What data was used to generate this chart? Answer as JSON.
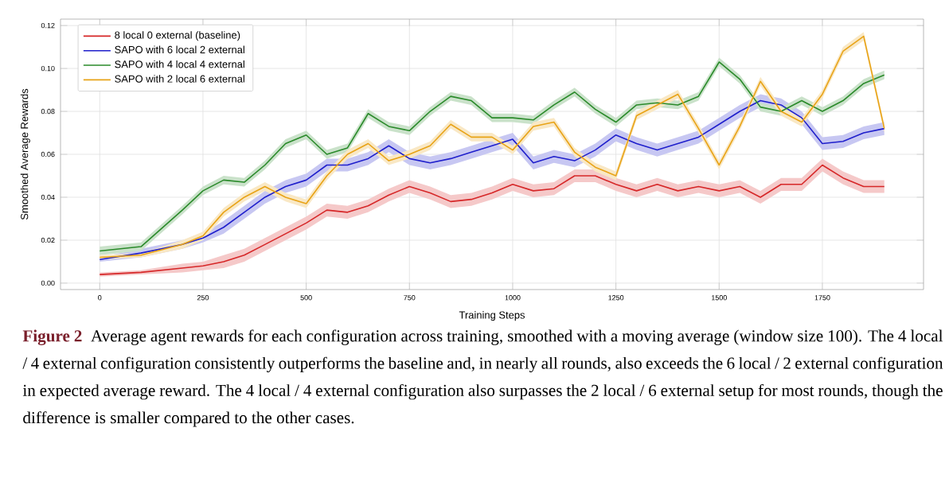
{
  "chart_data": {
    "type": "line",
    "xlabel": "Training Steps",
    "ylabel": "Smoothed Average Rewards",
    "xlim": [
      -95,
      1995
    ],
    "ylim": [
      -0.003,
      0.123
    ],
    "xticks": [
      0,
      250,
      500,
      750,
      1000,
      1250,
      1500,
      1750
    ],
    "yticks": [
      {
        "value": 0,
        "label": "0.00"
      },
      {
        "value": 0.02,
        "label": "0.02"
      },
      {
        "value": 0.04,
        "label": "0.04"
      },
      {
        "value": 0.06,
        "label": "0.06"
      },
      {
        "value": 0.08,
        "label": "0.08"
      },
      {
        "value": 0.1,
        "label": "0.10"
      },
      {
        "value": 0.12,
        "label": "0.12"
      }
    ],
    "grid": true,
    "legend": "top left",
    "marker": "none",
    "line_style": "solid",
    "x": [
      0,
      100,
      200,
      250,
      300,
      350,
      400,
      450,
      500,
      550,
      600,
      650,
      700,
      750,
      800,
      850,
      900,
      950,
      1000,
      1050,
      1100,
      1150,
      1200,
      1250,
      1300,
      1350,
      1400,
      1450,
      1500,
      1550,
      1600,
      1650,
      1700,
      1750,
      1800,
      1850,
      1900
    ],
    "series": [
      {
        "name": "8 local 0 external (baseline)",
        "color": "#d62728",
        "values": [
          0.004,
          0.005,
          0.007,
          0.008,
          0.01,
          0.013,
          0.018,
          0.023,
          0.028,
          0.034,
          0.033,
          0.036,
          0.041,
          0.045,
          0.042,
          0.038,
          0.039,
          0.042,
          0.046,
          0.043,
          0.044,
          0.05,
          0.05,
          0.046,
          0.043,
          0.046,
          0.043,
          0.045,
          0.043,
          0.045,
          0.04,
          0.046,
          0.046,
          0.055,
          0.049,
          0.045,
          0.045
        ],
        "lower": [
          0.003,
          0.004,
          0.005,
          0.006,
          0.007,
          0.01,
          0.015,
          0.02,
          0.025,
          0.031,
          0.03,
          0.033,
          0.038,
          0.042,
          0.039,
          0.035,
          0.036,
          0.039,
          0.043,
          0.04,
          0.041,
          0.047,
          0.047,
          0.043,
          0.04,
          0.043,
          0.04,
          0.042,
          0.04,
          0.042,
          0.037,
          0.043,
          0.043,
          0.052,
          0.046,
          0.042,
          0.042
        ],
        "upper": [
          0.005,
          0.006,
          0.009,
          0.01,
          0.013,
          0.016,
          0.021,
          0.026,
          0.031,
          0.037,
          0.036,
          0.039,
          0.044,
          0.048,
          0.045,
          0.041,
          0.042,
          0.045,
          0.049,
          0.046,
          0.047,
          0.053,
          0.053,
          0.049,
          0.046,
          0.049,
          0.046,
          0.048,
          0.046,
          0.048,
          0.043,
          0.049,
          0.049,
          0.058,
          0.052,
          0.048,
          0.048
        ]
      },
      {
        "name": "SAPO with 6 local 2 external",
        "color": "#1f1fcc",
        "values": [
          0.011,
          0.014,
          0.018,
          0.021,
          0.026,
          0.033,
          0.04,
          0.045,
          0.048,
          0.055,
          0.055,
          0.058,
          0.064,
          0.058,
          0.056,
          0.058,
          0.061,
          0.064,
          0.067,
          0.056,
          0.059,
          0.057,
          0.062,
          0.069,
          0.065,
          0.062,
          0.065,
          0.068,
          0.074,
          0.08,
          0.085,
          0.083,
          0.077,
          0.065,
          0.066,
          0.07,
          0.072
        ],
        "lower": [
          0.01,
          0.012,
          0.016,
          0.019,
          0.023,
          0.03,
          0.037,
          0.042,
          0.045,
          0.052,
          0.052,
          0.055,
          0.061,
          0.055,
          0.053,
          0.055,
          0.058,
          0.061,
          0.064,
          0.053,
          0.056,
          0.054,
          0.059,
          0.066,
          0.062,
          0.059,
          0.062,
          0.065,
          0.071,
          0.077,
          0.082,
          0.08,
          0.074,
          0.062,
          0.063,
          0.067,
          0.069
        ],
        "upper": [
          0.012,
          0.016,
          0.02,
          0.023,
          0.029,
          0.036,
          0.043,
          0.048,
          0.051,
          0.058,
          0.058,
          0.061,
          0.067,
          0.061,
          0.059,
          0.061,
          0.064,
          0.067,
          0.07,
          0.059,
          0.062,
          0.06,
          0.065,
          0.072,
          0.068,
          0.065,
          0.068,
          0.071,
          0.077,
          0.083,
          0.088,
          0.086,
          0.08,
          0.068,
          0.069,
          0.073,
          0.075
        ]
      },
      {
        "name": "SAPO with 4 local 4 external",
        "color": "#2a8a2a",
        "values": [
          0.015,
          0.017,
          0.034,
          0.043,
          0.048,
          0.047,
          0.055,
          0.065,
          0.069,
          0.06,
          0.063,
          0.079,
          0.073,
          0.071,
          0.08,
          0.087,
          0.085,
          0.077,
          0.077,
          0.076,
          0.083,
          0.089,
          0.081,
          0.075,
          0.083,
          0.084,
          0.083,
          0.087,
          0.103,
          0.095,
          0.082,
          0.08,
          0.085,
          0.08,
          0.085,
          0.093,
          0.097
        ],
        "lower": [
          0.013,
          0.015,
          0.032,
          0.041,
          0.046,
          0.045,
          0.053,
          0.063,
          0.067,
          0.058,
          0.061,
          0.077,
          0.071,
          0.069,
          0.078,
          0.085,
          0.083,
          0.075,
          0.075,
          0.074,
          0.081,
          0.087,
          0.079,
          0.073,
          0.081,
          0.082,
          0.081,
          0.085,
          0.101,
          0.093,
          0.08,
          0.078,
          0.083,
          0.078,
          0.083,
          0.091,
          0.095
        ],
        "upper": [
          0.017,
          0.019,
          0.036,
          0.045,
          0.05,
          0.049,
          0.057,
          0.067,
          0.071,
          0.062,
          0.065,
          0.081,
          0.075,
          0.073,
          0.082,
          0.089,
          0.087,
          0.079,
          0.079,
          0.078,
          0.085,
          0.091,
          0.083,
          0.077,
          0.085,
          0.086,
          0.085,
          0.089,
          0.105,
          0.097,
          0.084,
          0.082,
          0.087,
          0.082,
          0.087,
          0.095,
          0.099
        ]
      },
      {
        "name": "SAPO with 2 local 6 external",
        "color": "#e8a317",
        "values": [
          0.012,
          0.013,
          0.018,
          0.022,
          0.033,
          0.04,
          0.045,
          0.04,
          0.037,
          0.05,
          0.06,
          0.065,
          0.057,
          0.06,
          0.064,
          0.074,
          0.068,
          0.068,
          0.062,
          0.073,
          0.075,
          0.061,
          0.054,
          0.05,
          0.078,
          0.083,
          0.088,
          0.072,
          0.055,
          0.073,
          0.094,
          0.08,
          0.075,
          0.088,
          0.108,
          0.115,
          0.072
        ],
        "lower": [
          0.011,
          0.012,
          0.016,
          0.02,
          0.031,
          0.038,
          0.043,
          0.038,
          0.035,
          0.048,
          0.058,
          0.063,
          0.055,
          0.058,
          0.062,
          0.072,
          0.066,
          0.066,
          0.06,
          0.071,
          0.073,
          0.059,
          0.052,
          0.048,
          0.076,
          0.081,
          0.086,
          0.07,
          0.053,
          0.071,
          0.092,
          0.078,
          0.073,
          0.086,
          0.106,
          0.113,
          0.07
        ],
        "upper": [
          0.013,
          0.014,
          0.02,
          0.024,
          0.035,
          0.042,
          0.047,
          0.042,
          0.039,
          0.052,
          0.062,
          0.067,
          0.059,
          0.062,
          0.066,
          0.076,
          0.07,
          0.07,
          0.064,
          0.075,
          0.077,
          0.063,
          0.056,
          0.052,
          0.08,
          0.085,
          0.09,
          0.074,
          0.057,
          0.075,
          0.096,
          0.082,
          0.077,
          0.09,
          0.11,
          0.117,
          0.074
        ]
      }
    ],
    "annotations": [
      "Figure 2",
      "Average agent rewards for each configuration across training, smoothed with a moving average (window size 100). The 4 local / 4 external configuration consistently outperforms the baseline and, in nearly all rounds, also exceeds the 6 local / 2 external configuration in expected average reward. The 4 local / 4 external configuration also surpasses the 2 local / 6 external setup for most rounds, though the difference is smaller compared to the other cases."
    ]
  }
}
